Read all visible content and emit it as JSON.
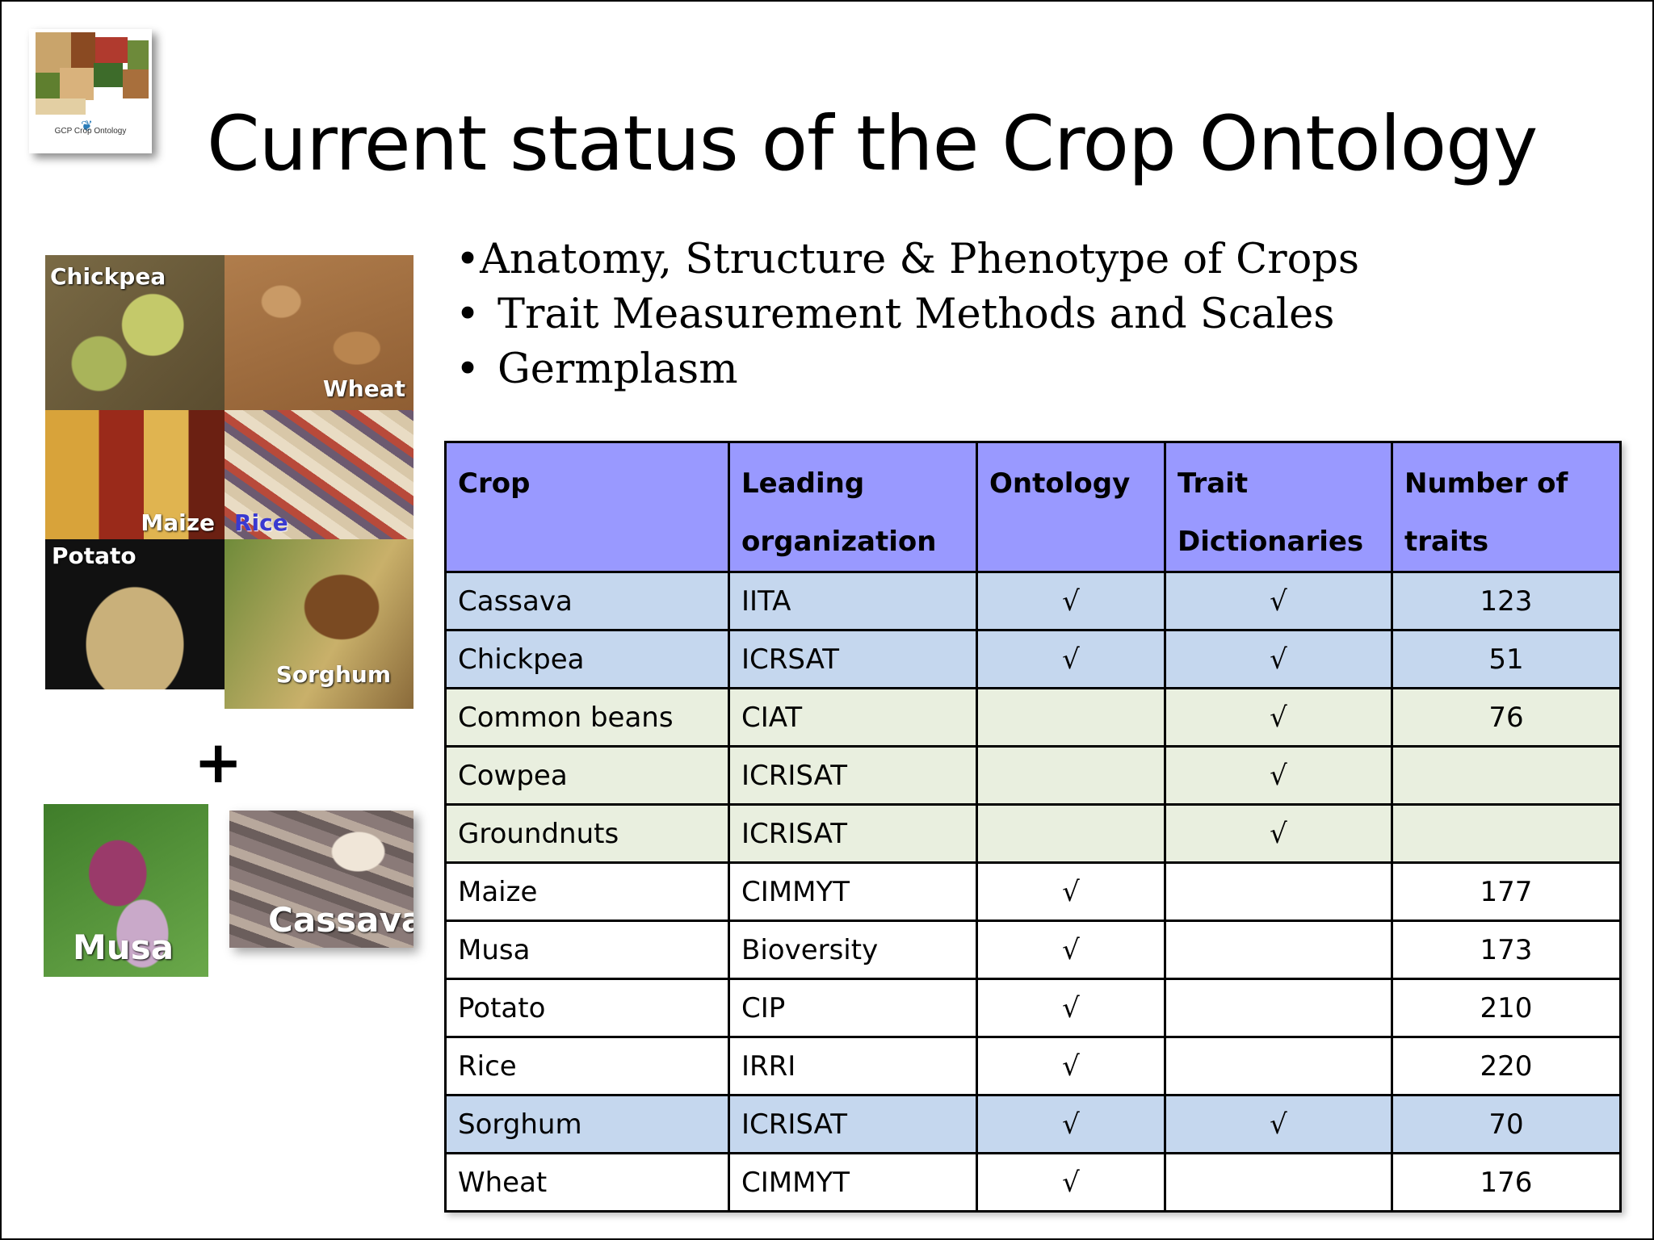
{
  "slide": {
    "title": "Current status of the Crop Ontology",
    "logo_text": "GCP Crop Ontology",
    "bullets": [
      "Anatomy, Structure & Phenotype of Crops",
      "Trait Measurement Methods and Scales",
      "Germplasm"
    ],
    "plus": "+",
    "image_labels": {
      "chickpea": "Chickpea",
      "wheat": "Wheat",
      "maize": "Maize",
      "rice": "Rice",
      "potato": "Potato",
      "sorghum": "Sorghum",
      "musa": "Musa",
      "cassava": "Cassava"
    }
  },
  "table": {
    "headers": [
      [
        "Crop"
      ],
      [
        "Leading",
        "organization"
      ],
      [
        "Ontology"
      ],
      [
        "Trait",
        "Dictionaries"
      ],
      [
        "Number of",
        "traits"
      ]
    ],
    "check": "√",
    "rows": [
      {
        "crop": "Cassava",
        "org": "IITA",
        "ontology": "√",
        "dictionaries": "√",
        "traits": "123",
        "group": "blue"
      },
      {
        "crop": "Chickpea",
        "org": "ICRSAT",
        "ontology": "√",
        "dictionaries": "√",
        "traits": "51",
        "group": "blue"
      },
      {
        "crop": "Common beans",
        "org": "CIAT",
        "ontology": "",
        "dictionaries": "√",
        "traits": "76",
        "group": "green"
      },
      {
        "crop": "Cowpea",
        "org": "ICRISAT",
        "ontology": "",
        "dictionaries": "√",
        "traits": "",
        "group": "green"
      },
      {
        "crop": "Groundnuts",
        "org": "ICRISAT",
        "ontology": "",
        "dictionaries": "√",
        "traits": "",
        "group": "green"
      },
      {
        "crop": "Maize",
        "org": "CIMMYT",
        "ontology": "√",
        "dictionaries": "",
        "traits": "177",
        "group": "white"
      },
      {
        "crop": "Musa",
        "org": "Bioversity",
        "ontology": "√",
        "dictionaries": "",
        "traits": "173",
        "group": "white"
      },
      {
        "crop": "Potato",
        "org": "CIP",
        "ontology": "√",
        "dictionaries": "",
        "traits": "210",
        "group": "white"
      },
      {
        "crop": "Rice",
        "org": "IRRI",
        "ontology": "√",
        "dictionaries": "",
        "traits": "220",
        "group": "white"
      },
      {
        "crop": "Sorghum",
        "org": "ICRISAT",
        "ontology": "√",
        "dictionaries": "√",
        "traits": "70",
        "group": "blue"
      },
      {
        "crop": "Wheat",
        "org": "CIMMYT",
        "ontology": "√",
        "dictionaries": "",
        "traits": "176",
        "group": "white"
      }
    ]
  },
  "colors": {
    "header": "#9999ff",
    "blue_row": "#c5d7ee",
    "green_row": "#e9efdf",
    "white_row": "#ffffff",
    "border": "#000000"
  }
}
